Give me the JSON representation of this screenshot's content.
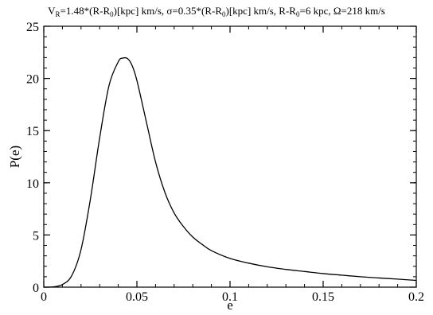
{
  "chart_data": {
    "type": "line",
    "title": "",
    "title_parts": {
      "vr_a": "V",
      "vr_sub": "R",
      "vr_b": "=1.48*(R-R",
      "r0_sub_1": "0",
      "vr_c": ")[kpc] km/s, ",
      "sigma": "σ=0.35*(R-R",
      "r0_sub_2": "0",
      "sigma_b": ")[kpc] km/s, R-R",
      "r0_sub_3": "0",
      "rest": "=6 kpc, Ω=218 km/s"
    },
    "xlabel": "e",
    "ylabel": "P(e)",
    "xlim": [
      0,
      0.2
    ],
    "ylim": [
      0,
      25
    ],
    "x_ticks": [
      0,
      0.05,
      0.1,
      0.15,
      0.2
    ],
    "x_tick_labels": [
      "0",
      "0.05",
      "0.1",
      "0.15",
      "0.2"
    ],
    "y_ticks": [
      0,
      5,
      10,
      15,
      20,
      25
    ],
    "y_tick_labels": [
      "0",
      "5",
      "10",
      "15",
      "20",
      "25"
    ],
    "x_minor_step": 0.01,
    "y_minor_step": 1,
    "grid": false,
    "series": [
      {
        "color": "#000000",
        "x": [
          0,
          0.005,
          0.01,
          0.015,
          0.02,
          0.025,
          0.03,
          0.035,
          0.04,
          0.0425,
          0.045,
          0.0475,
          0.05,
          0.055,
          0.06,
          0.065,
          0.07,
          0.075,
          0.08,
          0.085,
          0.09,
          0.1,
          0.11,
          0.12,
          0.13,
          0.14,
          0.15,
          0.16,
          0.17,
          0.18,
          0.19,
          0.2
        ],
        "y": [
          0,
          0.03,
          0.25,
          1.1,
          3.6,
          8.4,
          14.3,
          19.3,
          21.6,
          21.95,
          21.9,
          21.2,
          19.8,
          15.9,
          12.0,
          9.1,
          7.1,
          5.8,
          4.8,
          4.1,
          3.5,
          2.75,
          2.3,
          1.95,
          1.7,
          1.5,
          1.3,
          1.15,
          1.0,
          0.88,
          0.77,
          0.65
        ]
      }
    ]
  }
}
